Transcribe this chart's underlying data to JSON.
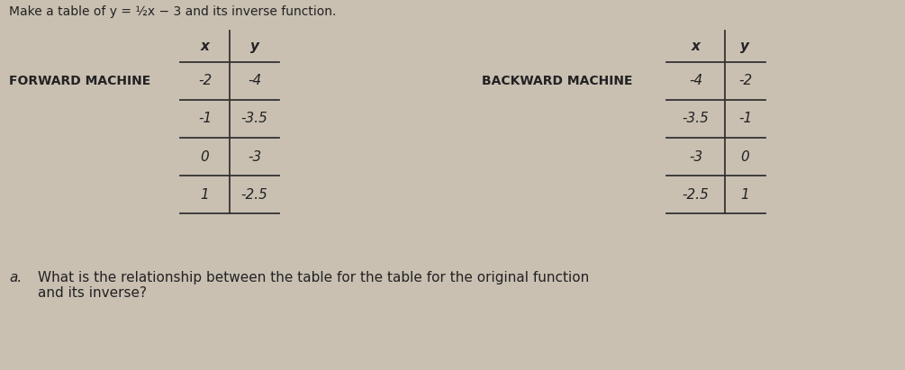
{
  "title": "Make a table of y = ½x − 3 and its inverse function.",
  "bg_color": "#c9c0b2",
  "forward_label": "FORWARD MACHINE",
  "backward_label": "BACKWARD MACHINE",
  "forward_headers": [
    "x",
    "y"
  ],
  "forward_rows": [
    [
      "-2",
      "-4"
    ],
    [
      "-1",
      "-3.5"
    ],
    [
      "0",
      "-3"
    ],
    [
      "1",
      "-2.5"
    ]
  ],
  "backward_headers": [
    "x",
    "y"
  ],
  "backward_rows": [
    [
      "-4",
      "-2"
    ],
    [
      "-3.5",
      "-1"
    ],
    [
      "-3",
      "0"
    ],
    [
      "-2.5",
      "1"
    ]
  ],
  "question_label": "a.",
  "question_text": "What is the relationship between the table for the table for the original function\nand its inverse?",
  "text_color": "#222222",
  "line_color": "#333333",
  "font_size_title": 10,
  "font_size_label": 10,
  "font_size_table": 11,
  "font_size_question": 11
}
